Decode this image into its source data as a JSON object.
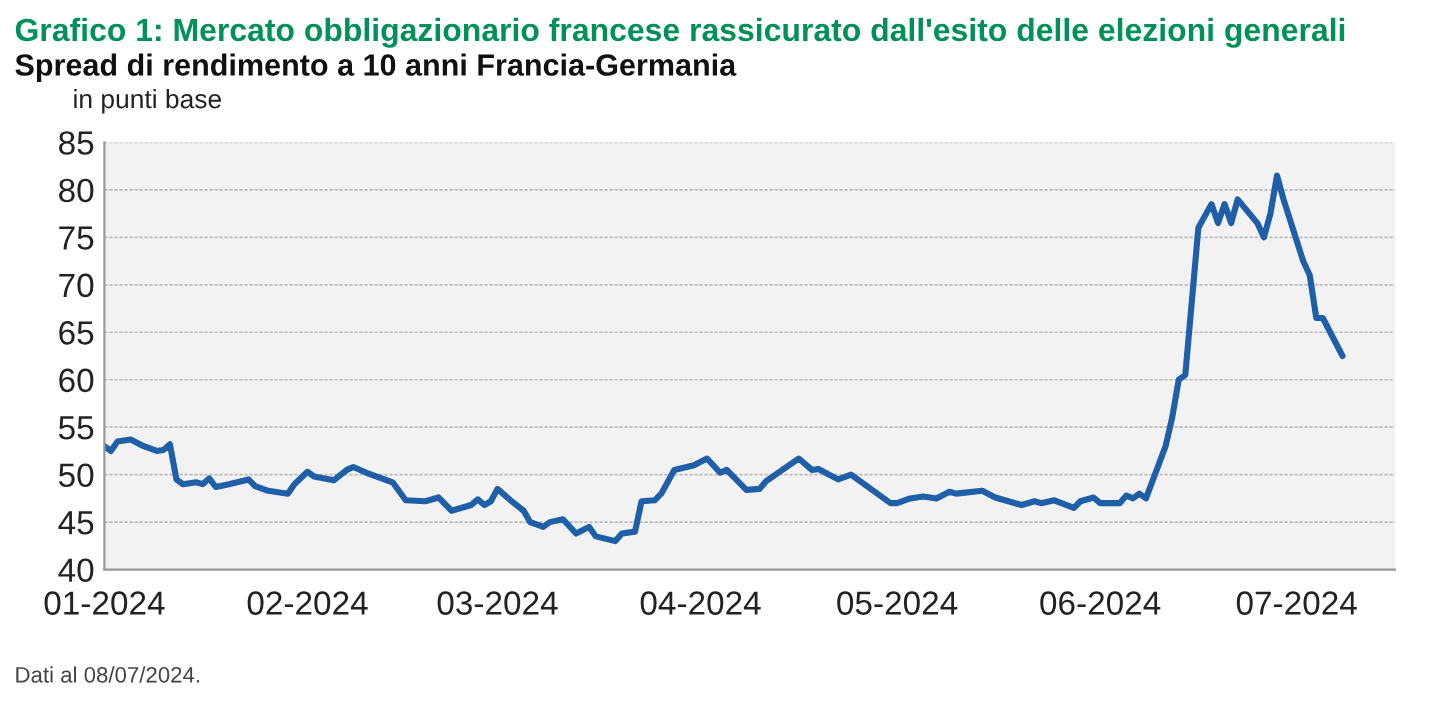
{
  "chart_data": {
    "type": "line",
    "title": "Grafico 1: Mercato obbligazionario francese rassicurato dall'esito delle elezioni generali",
    "subtitle": "Spread di rendimento a 10 anni Francia-Germania",
    "ylabel": "in punti base",
    "annotations": [
      "Dati al 08/07/2024."
    ],
    "x": [
      "2024-01-01",
      "2024-01-02",
      "2024-01-03",
      "2024-01-05",
      "2024-01-07",
      "2024-01-09",
      "2024-01-10",
      "2024-01-11",
      "2024-01-12",
      "2024-01-13",
      "2024-01-15",
      "2024-01-16",
      "2024-01-17",
      "2024-01-18",
      "2024-01-20",
      "2024-01-23",
      "2024-01-24",
      "2024-01-26",
      "2024-01-29",
      "2024-01-30",
      "2024-02-01",
      "2024-02-02",
      "2024-02-05",
      "2024-02-07",
      "2024-02-08",
      "2024-02-10",
      "2024-02-14",
      "2024-02-16",
      "2024-02-19",
      "2024-02-21",
      "2024-02-23",
      "2024-02-26",
      "2024-02-27",
      "2024-02-28",
      "2024-02-29",
      "2024-03-01",
      "2024-03-03",
      "2024-03-05",
      "2024-03-06",
      "2024-03-08",
      "2024-03-09",
      "2024-03-11",
      "2024-03-13",
      "2024-03-15",
      "2024-03-16",
      "2024-03-19",
      "2024-03-20",
      "2024-03-22",
      "2024-03-23",
      "2024-03-25",
      "2024-03-26",
      "2024-03-28",
      "2024-03-31",
      "2024-04-02",
      "2024-04-04",
      "2024-04-05",
      "2024-04-08",
      "2024-04-10",
      "2024-04-11",
      "2024-04-16",
      "2024-04-18",
      "2024-04-19",
      "2024-04-22",
      "2024-04-24",
      "2024-04-30",
      "2024-05-01",
      "2024-05-03",
      "2024-05-05",
      "2024-05-07",
      "2024-05-09",
      "2024-05-10",
      "2024-05-14",
      "2024-05-16",
      "2024-05-20",
      "2024-05-22",
      "2024-05-23",
      "2024-05-25",
      "2024-05-28",
      "2024-05-29",
      "2024-05-31",
      "2024-06-01",
      "2024-06-04",
      "2024-06-05",
      "2024-06-06",
      "2024-06-07",
      "2024-06-08",
      "2024-06-11",
      "2024-06-12",
      "2024-06-13",
      "2024-06-14",
      "2024-06-16",
      "2024-06-18",
      "2024-06-19",
      "2024-06-20",
      "2024-06-21",
      "2024-06-22",
      "2024-06-25",
      "2024-06-26",
      "2024-06-27",
      "2024-06-28",
      "2024-06-29",
      "2024-07-02",
      "2024-07-03",
      "2024-07-04",
      "2024-07-05",
      "2024-07-08"
    ],
    "series": [
      {
        "color": "#1f5fa8",
        "values": [
          53,
          52.5,
          53.5,
          53.7,
          53,
          52.5,
          52.6,
          53.2,
          49.5,
          49,
          49.2,
          49,
          49.6,
          48.7,
          49,
          49.5,
          48.8,
          48.3,
          48,
          49,
          50.3,
          49.8,
          49.4,
          50.5,
          50.8,
          50.2,
          49.2,
          47.3,
          47.2,
          47.6,
          46.2,
          46.8,
          47.4,
          46.8,
          47.2,
          48.5,
          47.3,
          46.2,
          45,
          44.5,
          45,
          45.3,
          43.8,
          44.5,
          43.5,
          43,
          43.8,
          44,
          47.2,
          47.3,
          48,
          50.5,
          51,
          51.7,
          50.2,
          50.5,
          48.4,
          48.5,
          49.3,
          51.7,
          50.5,
          50.6,
          49.5,
          50,
          47,
          47,
          47.5,
          47.7,
          47.5,
          48.2,
          48,
          48.3,
          47.6,
          46.8,
          47.2,
          47,
          47.3,
          46.5,
          47.2,
          47.6,
          47,
          47,
          47.8,
          47.5,
          48,
          47.5,
          53,
          56,
          60,
          60.5,
          76,
          78.5,
          76.5,
          78.5,
          76.5,
          79,
          76.5,
          75,
          77.5,
          81.5,
          79,
          72.5,
          71,
          66.5,
          66.5,
          62.5
        ]
      }
    ],
    "xlim": [
      "2024-01-01",
      "2024-07-16"
    ],
    "xticks": [
      {
        "value": "2024-01-01",
        "label": "01-2024"
      },
      {
        "value": "2024-02-01",
        "label": "02-2024"
      },
      {
        "value": "2024-03-01",
        "label": "03-2024"
      },
      {
        "value": "2024-04-01",
        "label": "04-2024"
      },
      {
        "value": "2024-05-01",
        "label": "05-2024"
      },
      {
        "value": "2024-06-01",
        "label": "06-2024"
      },
      {
        "value": "2024-07-01",
        "label": "07-2024"
      }
    ],
    "ylim": [
      40,
      85
    ],
    "yticks": [
      40,
      45,
      50,
      55,
      60,
      65,
      70,
      75,
      80,
      85
    ],
    "grid": "y",
    "line_style": "solid",
    "marker": "none",
    "legend": false
  }
}
